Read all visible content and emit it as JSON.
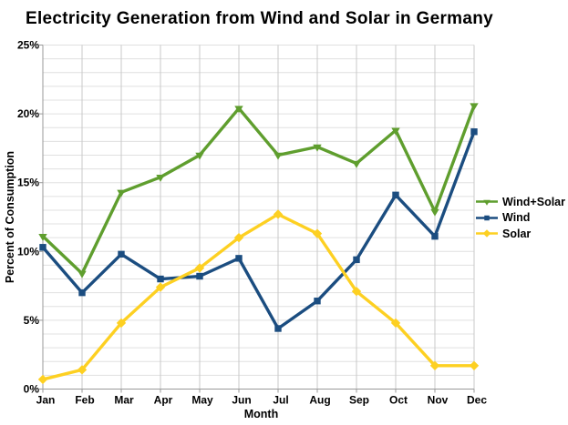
{
  "title": "Electricity Generation from Wind and Solar in Germany",
  "chart_data": {
    "type": "line",
    "title": "Electricity Generation from Wind and Solar in Germany",
    "xlabel": "Month",
    "ylabel": "Percent of Consumption",
    "categories": [
      "Jan",
      "Feb",
      "Mar",
      "Apr",
      "May",
      "Jun",
      "Jul",
      "Aug",
      "Sep",
      "Oct",
      "Nov",
      "Dec"
    ],
    "y_tick_labels": [
      "0%",
      "5%",
      "10%",
      "15%",
      "20%",
      "25%"
    ],
    "ylim": [
      0,
      25
    ],
    "grid": "horizontal minor every 1%, vertical at each month",
    "legend_position": "right",
    "series": [
      {
        "name": "Wind+Solar",
        "color": "#5f9e2e",
        "marker": "triangle-down",
        "values": [
          11.1,
          8.4,
          14.3,
          15.4,
          17.0,
          20.4,
          17.0,
          17.6,
          16.4,
          18.8,
          12.9,
          20.6
        ]
      },
      {
        "name": "Wind",
        "color": "#1b4d80",
        "marker": "square",
        "values": [
          10.3,
          7.0,
          9.8,
          8.0,
          8.2,
          9.5,
          4.4,
          6.4,
          9.4,
          14.1,
          11.1,
          18.7
        ]
      },
      {
        "name": "Solar",
        "color": "#fdd022",
        "marker": "diamond",
        "values": [
          0.7,
          1.4,
          4.8,
          7.4,
          8.8,
          11.0,
          12.7,
          11.3,
          7.1,
          4.8,
          1.7,
          1.7
        ]
      }
    ]
  }
}
